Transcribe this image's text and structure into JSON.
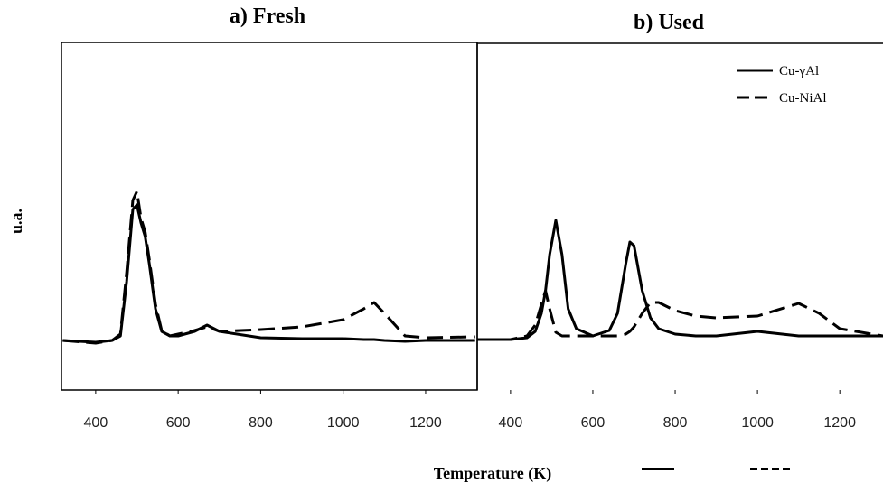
{
  "chart_data": [
    {
      "type": "line",
      "title": "a)  Fresh",
      "y_label": "u.a.",
      "x": [
        320,
        400,
        440,
        460,
        475,
        490,
        500,
        510,
        520,
        530,
        545,
        560,
        580,
        600,
        640,
        670,
        700,
        800,
        900,
        1000,
        1050,
        1075,
        1100,
        1150,
        1200,
        1320
      ],
      "series": [
        {
          "name": "Cu-γAl",
          "color": "#000000",
          "style": "solid",
          "values": [
            55,
            53,
            55,
            60,
            120,
            200,
            205,
            185,
            170,
            140,
            90,
            65,
            60,
            60,
            65,
            72,
            65,
            58,
            57,
            57,
            56,
            56,
            55,
            54,
            55,
            55
          ]
        },
        {
          "name": "Cu-NiAl",
          "color": "#000000",
          "style": "dashed",
          "values": [
            55,
            52,
            55,
            62,
            130,
            210,
            220,
            190,
            175,
            145,
            95,
            66,
            60,
            62,
            66,
            70,
            65,
            67,
            70,
            78,
            90,
            97,
            85,
            60,
            58,
            59
          ]
        }
      ],
      "xlim": [
        317,
        1325
      ],
      "xticks": [
        400,
        600,
        800,
        1000,
        1200
      ],
      "ylim": [
        0,
        385
      ]
    },
    {
      "type": "line",
      "title": "b)  Used",
      "x_label": "Temperature (K)",
      "legend": "upper right",
      "x": [
        320,
        400,
        440,
        460,
        475,
        485,
        495,
        510,
        525,
        540,
        560,
        600,
        640,
        660,
        680,
        690,
        700,
        720,
        740,
        760,
        800,
        850,
        900,
        1000,
        1100,
        1150,
        1200,
        1305
      ],
      "series": [
        {
          "name": "Cu-γAl",
          "color": "#000000",
          "style": "solid",
          "values": [
            56,
            56,
            58,
            65,
            85,
            110,
            150,
            188,
            150,
            90,
            68,
            60,
            66,
            85,
            140,
            164,
            160,
            110,
            80,
            68,
            62,
            60,
            60,
            65,
            60,
            60,
            60,
            60
          ]
        },
        {
          "name": "Cu-NiAl",
          "color": "#000000",
          "style": "dashed",
          "values": [
            56,
            56,
            60,
            72,
            95,
            110,
            90,
            64,
            60,
            60,
            60,
            60,
            60,
            60,
            62,
            65,
            70,
            85,
            97,
            97,
            88,
            82,
            80,
            82,
            96,
            85,
            68,
            60
          ]
        }
      ],
      "xlim": [
        319,
        1305
      ],
      "xticks": [
        400,
        600,
        800,
        1000,
        1200
      ],
      "ylim": [
        0,
        384
      ]
    }
  ]
}
